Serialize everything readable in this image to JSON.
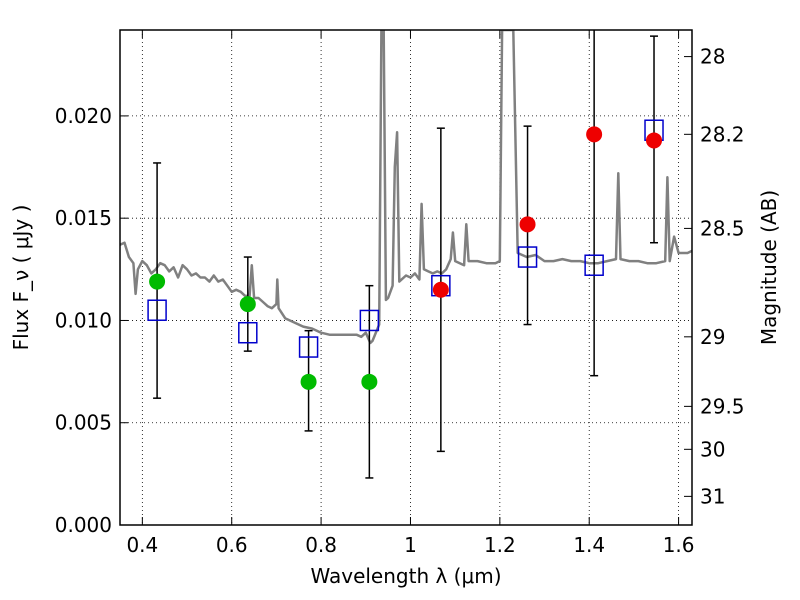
{
  "chart_data": {
    "type": "scatter",
    "xlabel": "Wavelength  λ (μm)",
    "ylabel": "Flux  F_ν  ( μJy )",
    "y2label": "Magnitude (AB)",
    "xlim": [
      0.35,
      1.63
    ],
    "ylim": [
      0.0,
      0.0242
    ],
    "x_ticks": [
      0.4,
      0.6,
      0.8,
      1.0,
      1.2,
      1.4,
      1.6
    ],
    "x_tick_labels": [
      "0.4",
      "0.6",
      "0.8",
      "1",
      "1.2",
      "1.4",
      "1.6"
    ],
    "y_ticks": [
      0.0,
      0.005,
      0.01,
      0.015,
      0.02
    ],
    "y_tick_labels": [
      "0.000",
      "0.005",
      "0.010",
      "0.015",
      "0.020"
    ],
    "mag_ticks": [
      {
        "label": "28",
        "flux": 0.0229
      },
      {
        "label": "28.2",
        "flux": 0.0191
      },
      {
        "label": "28.5",
        "flux": 0.0145
      },
      {
        "label": "29",
        "flux": 0.0092
      },
      {
        "label": "29.5",
        "flux": 0.0058
      },
      {
        "label": "30",
        "flux": 0.0037
      },
      {
        "label": "31",
        "flux": 0.0014
      }
    ],
    "grid": true,
    "model_spectrum": {
      "color": "#808080",
      "points": [
        [
          0.35,
          0.0137
        ],
        [
          0.36,
          0.0138
        ],
        [
          0.37,
          0.0131
        ],
        [
          0.38,
          0.0128
        ],
        [
          0.385,
          0.0113
        ],
        [
          0.39,
          0.0125
        ],
        [
          0.4,
          0.0129
        ],
        [
          0.41,
          0.0127
        ],
        [
          0.42,
          0.0123
        ],
        [
          0.43,
          0.0125
        ],
        [
          0.44,
          0.0128
        ],
        [
          0.45,
          0.0127
        ],
        [
          0.46,
          0.0124
        ],
        [
          0.47,
          0.0126
        ],
        [
          0.48,
          0.0121
        ],
        [
          0.49,
          0.0127
        ],
        [
          0.5,
          0.0125
        ],
        [
          0.51,
          0.0122
        ],
        [
          0.52,
          0.0123
        ],
        [
          0.53,
          0.0121
        ],
        [
          0.54,
          0.0121
        ],
        [
          0.55,
          0.0119
        ],
        [
          0.56,
          0.0122
        ],
        [
          0.57,
          0.0119
        ],
        [
          0.58,
          0.012
        ],
        [
          0.59,
          0.0117
        ],
        [
          0.6,
          0.0114
        ],
        [
          0.61,
          0.0115
        ],
        [
          0.62,
          0.0114
        ],
        [
          0.63,
          0.0112
        ],
        [
          0.64,
          0.0112
        ],
        [
          0.645,
          0.0127
        ],
        [
          0.65,
          0.0111
        ],
        [
          0.66,
          0.0111
        ],
        [
          0.67,
          0.0109
        ],
        [
          0.68,
          0.0107
        ],
        [
          0.69,
          0.0106
        ],
        [
          0.7,
          0.0108
        ],
        [
          0.702,
          0.012
        ],
        [
          0.705,
          0.0106
        ],
        [
          0.72,
          0.0101
        ],
        [
          0.74,
          0.0099
        ],
        [
          0.76,
          0.0097
        ],
        [
          0.78,
          0.0096
        ],
        [
          0.8,
          0.0094
        ],
        [
          0.82,
          0.0093
        ],
        [
          0.84,
          0.0093
        ],
        [
          0.86,
          0.0093
        ],
        [
          0.88,
          0.0093
        ],
        [
          0.89,
          0.0092
        ],
        [
          0.9,
          0.0094
        ],
        [
          0.91,
          0.0089
        ],
        [
          0.915,
          0.009
        ],
        [
          0.93,
          0.0098
        ],
        [
          0.935,
          0.0242
        ],
        [
          0.94,
          0.0242
        ],
        [
          0.945,
          0.011
        ],
        [
          0.95,
          0.0111
        ],
        [
          0.96,
          0.0117
        ],
        [
          0.965,
          0.0175
        ],
        [
          0.97,
          0.0192
        ],
        [
          0.975,
          0.0119
        ],
        [
          0.99,
          0.0122
        ],
        [
          1.0,
          0.0121
        ],
        [
          1.01,
          0.0123
        ],
        [
          1.02,
          0.012
        ],
        [
          1.025,
          0.0157
        ],
        [
          1.03,
          0.0125
        ],
        [
          1.04,
          0.0124
        ],
        [
          1.05,
          0.0123
        ],
        [
          1.06,
          0.0124
        ],
        [
          1.07,
          0.0123
        ],
        [
          1.08,
          0.0125
        ],
        [
          1.09,
          0.013
        ],
        [
          1.095,
          0.0143
        ],
        [
          1.1,
          0.0129
        ],
        [
          1.12,
          0.0127
        ],
        [
          1.125,
          0.0147
        ],
        [
          1.13,
          0.0129
        ],
        [
          1.15,
          0.0129
        ],
        [
          1.17,
          0.0128
        ],
        [
          1.19,
          0.0128
        ],
        [
          1.2,
          0.0129
        ],
        [
          1.205,
          0.0242
        ],
        [
          1.215,
          0.0242
        ],
        [
          1.22,
          0.0242
        ],
        [
          1.23,
          0.0242
        ],
        [
          1.24,
          0.0133
        ],
        [
          1.26,
          0.0131
        ],
        [
          1.28,
          0.0132
        ],
        [
          1.3,
          0.0129
        ],
        [
          1.32,
          0.0129
        ],
        [
          1.34,
          0.013
        ],
        [
          1.36,
          0.0129
        ],
        [
          1.38,
          0.0129
        ],
        [
          1.4,
          0.0128
        ],
        [
          1.42,
          0.0128
        ],
        [
          1.44,
          0.0129
        ],
        [
          1.46,
          0.013
        ],
        [
          1.465,
          0.0172
        ],
        [
          1.47,
          0.013
        ],
        [
          1.49,
          0.0129
        ],
        [
          1.51,
          0.0129
        ],
        [
          1.53,
          0.0128
        ],
        [
          1.55,
          0.0128
        ],
        [
          1.57,
          0.0129
        ],
        [
          1.575,
          0.017
        ],
        [
          1.58,
          0.0129
        ],
        [
          1.59,
          0.0141
        ],
        [
          1.6,
          0.0133
        ],
        [
          1.61,
          0.0133
        ],
        [
          1.62,
          0.0133
        ],
        [
          1.63,
          0.0134
        ]
      ]
    },
    "series": [
      {
        "marker": "square",
        "color": "#0000cc",
        "points": [
          {
            "x": 0.433,
            "y": 0.0105,
            "err_lo": 0.0062,
            "err_hi": 0.0177
          },
          {
            "x": 0.636,
            "y": 0.0094,
            "err_lo": 0.0085,
            "err_hi": 0.0131
          },
          {
            "x": 0.772,
            "y": 0.0087,
            "err_lo": 0.0046,
            "err_hi": 0.0095
          },
          {
            "x": 0.908,
            "y": 0.01,
            "err_lo": 0.0023,
            "err_hi": 0.0117
          },
          {
            "x": 1.068,
            "y": 0.0117,
            "err_lo": 0.0036,
            "err_hi": 0.0194
          },
          {
            "x": 1.262,
            "y": 0.0131,
            "err_lo": 0.0098,
            "err_hi": 0.0195
          },
          {
            "x": 1.411,
            "y": 0.0127,
            "err_lo": 0.0073,
            "err_hi": 0.0243
          },
          {
            "x": 1.545,
            "y": 0.0193,
            "err_lo": 0.0138,
            "err_hi": 0.0239
          }
        ]
      },
      {
        "marker": "circle",
        "color": "#00bb00",
        "points": [
          {
            "x": 0.433,
            "y": 0.0119
          },
          {
            "x": 0.636,
            "y": 0.0108
          },
          {
            "x": 0.772,
            "y": 0.007
          },
          {
            "x": 0.908,
            "y": 0.007
          }
        ]
      },
      {
        "marker": "circle",
        "color": "#ee0000",
        "points": [
          {
            "x": 1.068,
            "y": 0.0115
          },
          {
            "x": 1.262,
            "y": 0.0147
          },
          {
            "x": 1.411,
            "y": 0.0191
          },
          {
            "x": 1.545,
            "y": 0.0188
          }
        ]
      }
    ]
  }
}
